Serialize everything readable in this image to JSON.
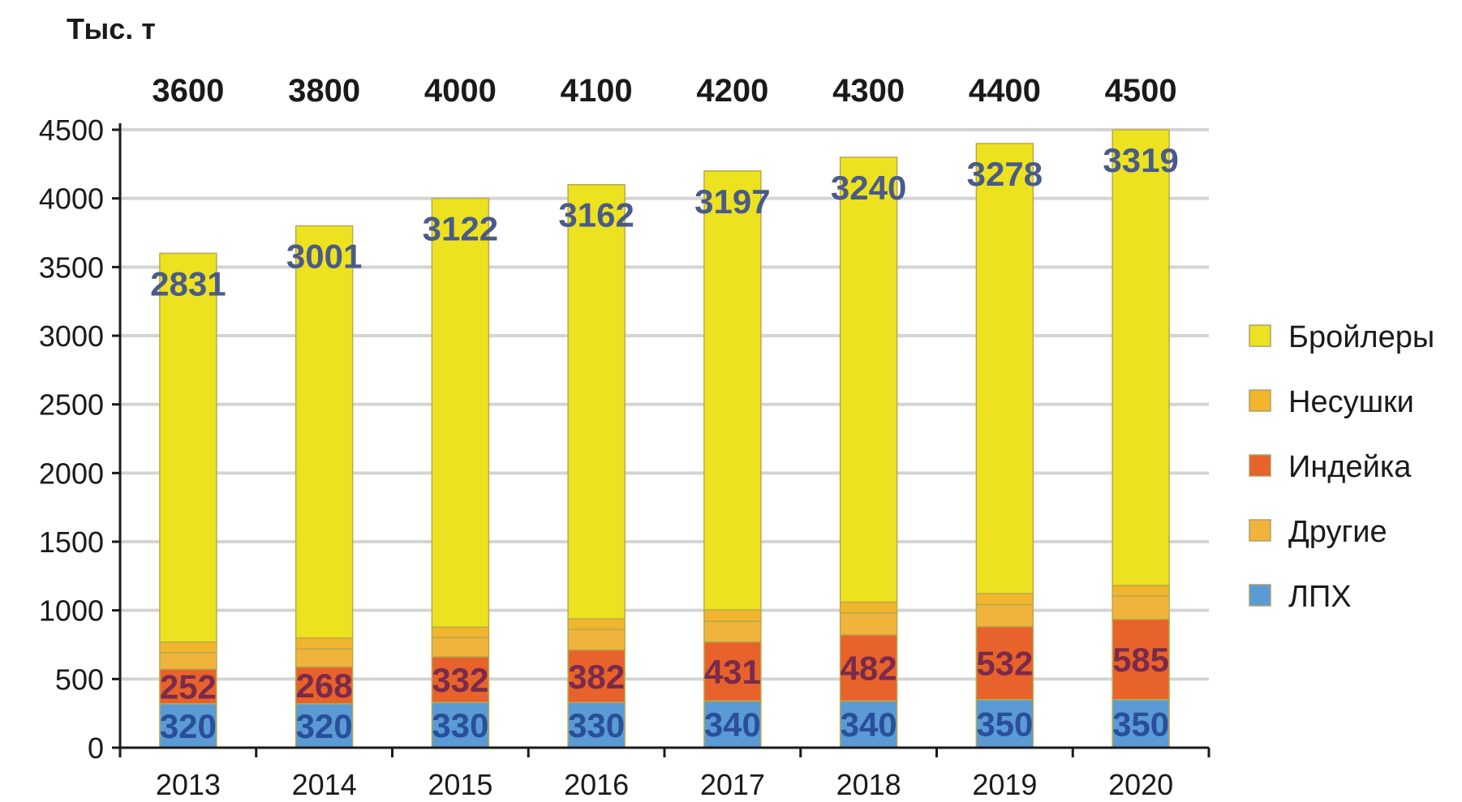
{
  "chart_data": {
    "type": "bar",
    "stacked": true,
    "unit_label": "Тыс. т",
    "categories": [
      "2013",
      "2014",
      "2015",
      "2016",
      "2017",
      "2018",
      "2019",
      "2020"
    ],
    "totals": [
      3600,
      3800,
      4000,
      4100,
      4200,
      4300,
      4400,
      4500
    ],
    "ylim": [
      0,
      4500
    ],
    "yticks": [
      0,
      500,
      1000,
      1500,
      2000,
      2500,
      3000,
      3500,
      4000,
      4500
    ],
    "grid": true,
    "legend_position": "right",
    "series": [
      {
        "name": "ЛПХ",
        "color": "#5b9bd5",
        "values": [
          320,
          320,
          330,
          330,
          340,
          340,
          350,
          350
        ],
        "labels": [
          "320",
          "320",
          "330",
          "330",
          "340",
          "340",
          "350",
          "350"
        ],
        "label_color": "#2a4f9a"
      },
      {
        "name": "Индейка",
        "color": "#e8622c",
        "values": [
          252,
          268,
          332,
          382,
          431,
          482,
          532,
          585
        ],
        "labels": [
          "252",
          "268",
          "332",
          "382",
          "431",
          "482",
          "532",
          "585"
        ],
        "label_color": "#7a2a4a"
      },
      {
        "name": "Другие",
        "color": "#f0b43c",
        "values": [
          120,
          130,
          140,
          150,
          150,
          160,
          160,
          170
        ],
        "labels": [],
        "label_color": ""
      },
      {
        "name": "Несушки",
        "color": "#f2b52e",
        "values": [
          77,
          81,
          76,
          76,
          82,
          78,
          80,
          76
        ],
        "labels": [],
        "label_color": ""
      },
      {
        "name": "Бройлеры",
        "color": "#ece21f",
        "values": [
          2831,
          3001,
          3122,
          3162,
          3197,
          3240,
          3278,
          3319
        ],
        "labels": [
          "2831",
          "3001",
          "3122",
          "3162",
          "3197",
          "3240",
          "3278",
          "3319"
        ],
        "label_color": "#4a5a8a"
      }
    ],
    "legend_order": [
      "Бройлеры",
      "Несушки",
      "Индейка",
      "Другие",
      "ЛПХ"
    ]
  }
}
